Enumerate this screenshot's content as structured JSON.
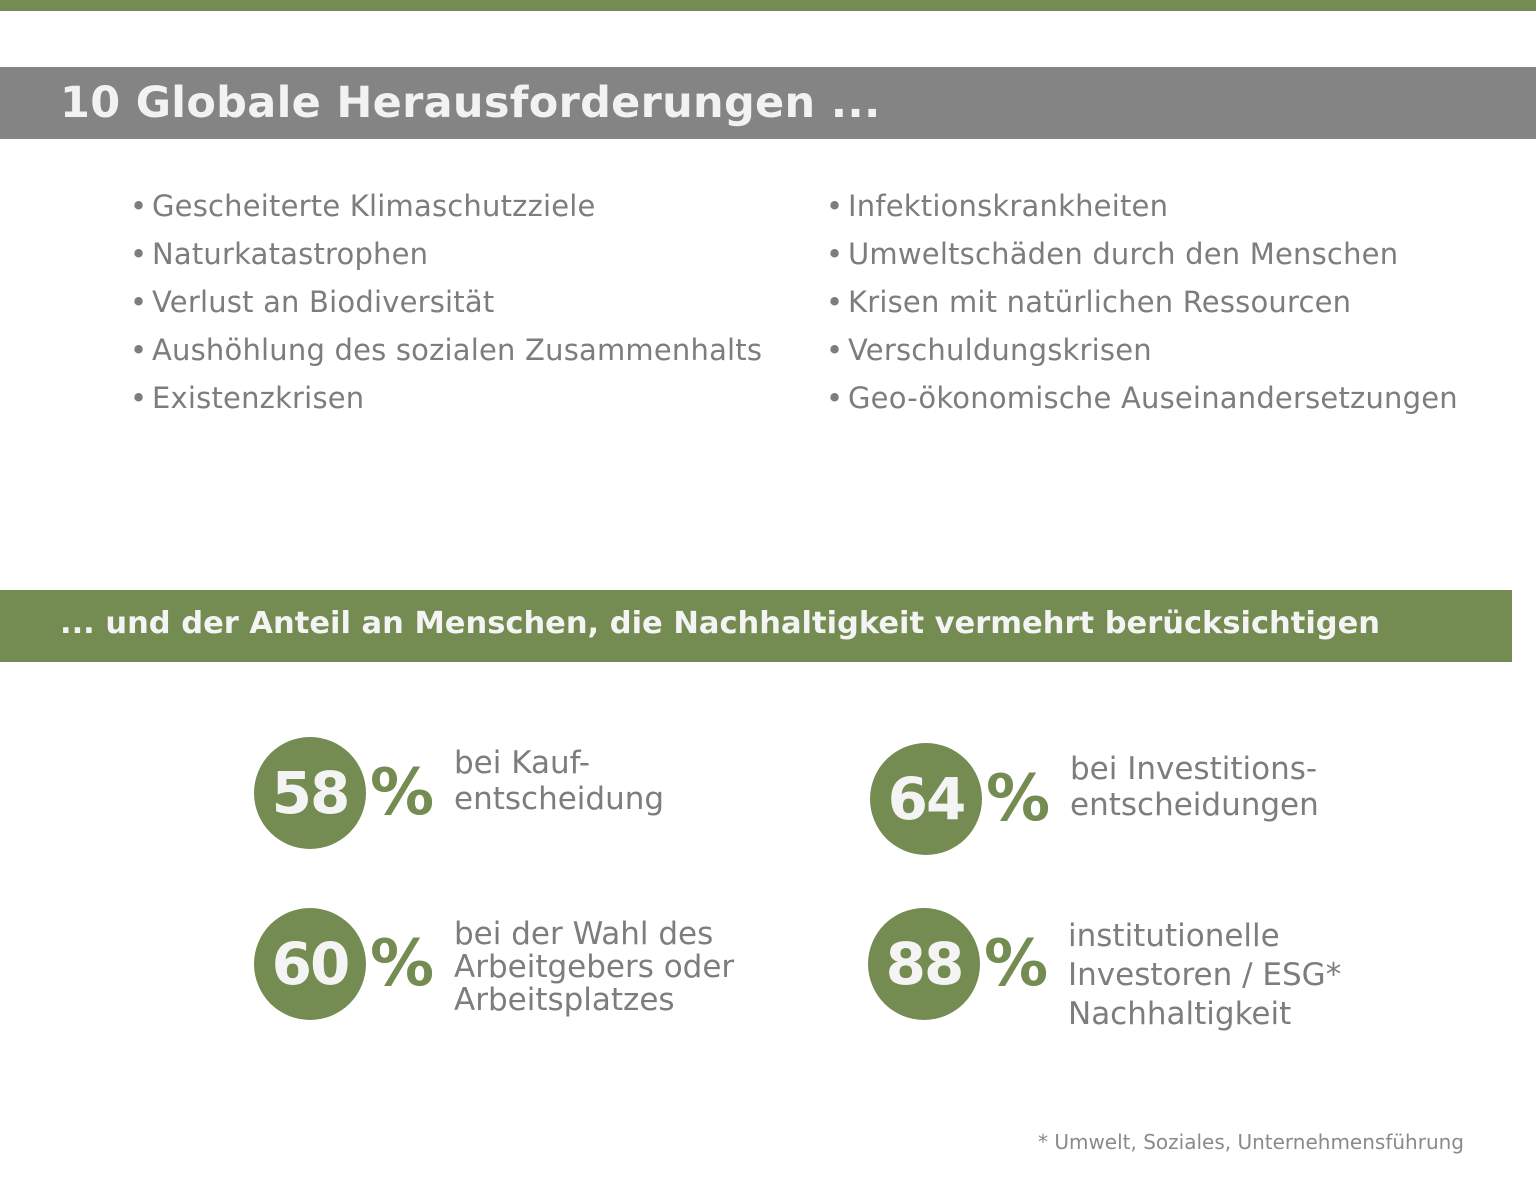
{
  "colors": {
    "accent_green": "#748b52",
    "banner_grey": "#858485",
    "text_grey": "#7d7d7d",
    "heading_text": "#f2f2f2"
  },
  "header": {
    "title": "10 Globale Herausforderungen ..."
  },
  "challenges": {
    "bullet": "•",
    "left": [
      "Gescheiterte Klimaschutzziele",
      "Naturkatastrophen",
      "Verlust an Biodiversität",
      "Aushöhlung des sozialen Zusammenhalts",
      "Existenzkrisen"
    ],
    "right": [
      "Infektionskrankheiten",
      "Umweltschäden durch den Menschen",
      "Krisen mit natürlichen Ressourcen",
      "Verschuldungskrisen",
      "Geo-ökonomische Auseinandersetzungen"
    ]
  },
  "subheader": {
    "title": "... und der Anteil an Menschen, die Nachhaltigkeit vermehrt berücksichtigen"
  },
  "stats": [
    {
      "value": "58",
      "percent_sign": "%",
      "lines": [
        "bei Kauf-",
        "entscheidung"
      ]
    },
    {
      "value": "64",
      "percent_sign": "%",
      "lines": [
        "bei Investitions-",
        "entscheidungen"
      ]
    },
    {
      "value": "60",
      "percent_sign": "%",
      "lines": [
        "bei der Wahl des",
        "Arbeitgebers oder",
        "Arbeitsplatzes"
      ]
    },
    {
      "value": "88",
      "percent_sign": "%",
      "lines": [
        "institutionelle",
        "Investoren / ESG*",
        "Nachhaltigkeit"
      ]
    }
  ],
  "footnote": "* Umwelt, Soziales, Unternehmensführung"
}
